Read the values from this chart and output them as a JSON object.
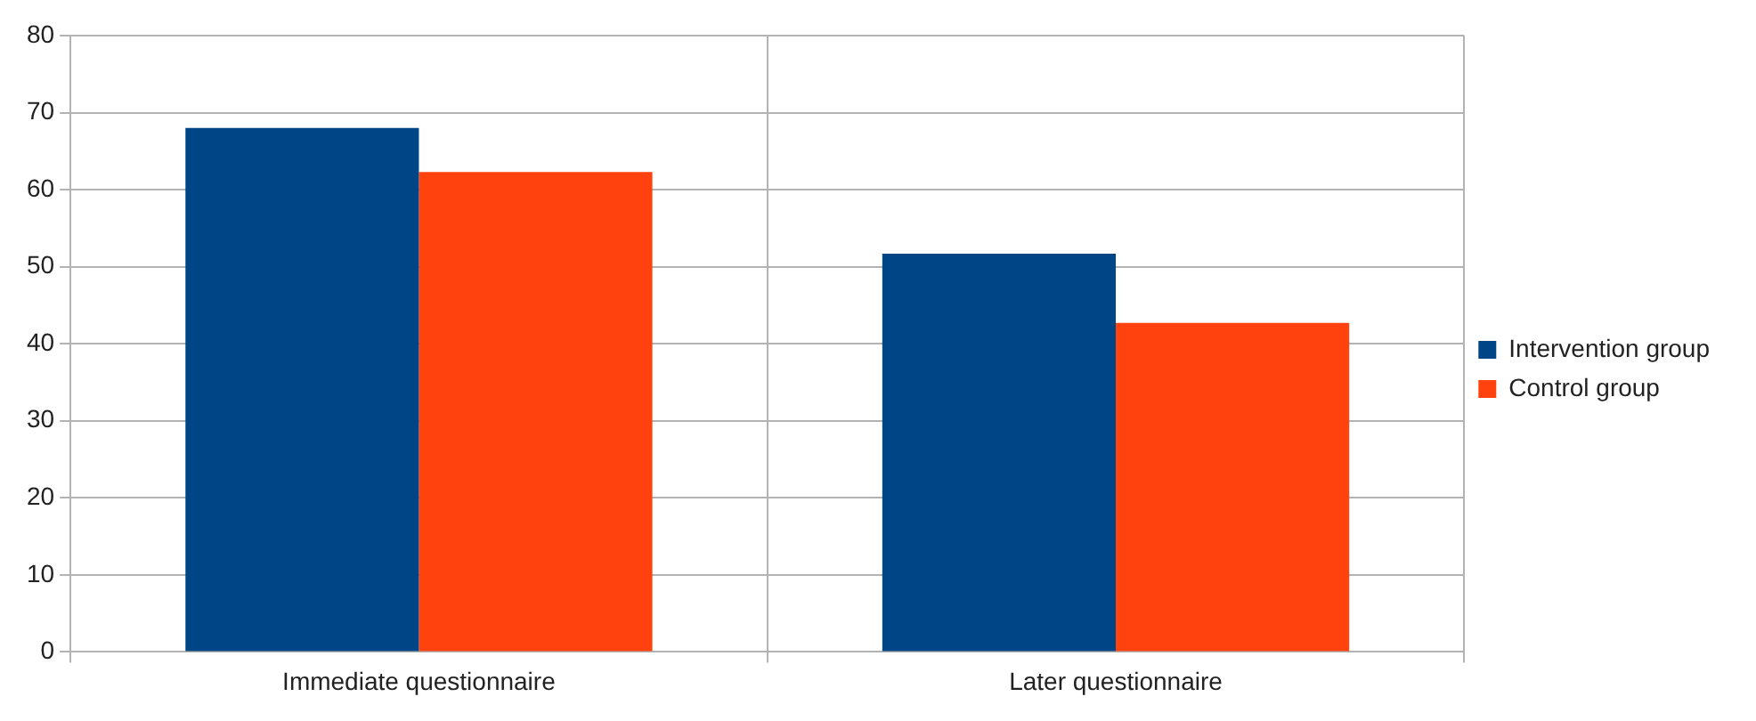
{
  "chart_data": {
    "type": "bar",
    "categories": [
      "Immediate questionnaire",
      "Later questionnaire"
    ],
    "series": [
      {
        "name": "Intervention group",
        "color": "#004586",
        "values": [
          68,
          51.7
        ]
      },
      {
        "name": "Control group",
        "color": "#ff420e",
        "values": [
          62.3,
          42.7
        ]
      }
    ],
    "ylim": [
      0,
      80
    ],
    "yticks": [
      0,
      10,
      20,
      30,
      40,
      50,
      60,
      70,
      80
    ],
    "grid": true,
    "legend": "right"
  }
}
